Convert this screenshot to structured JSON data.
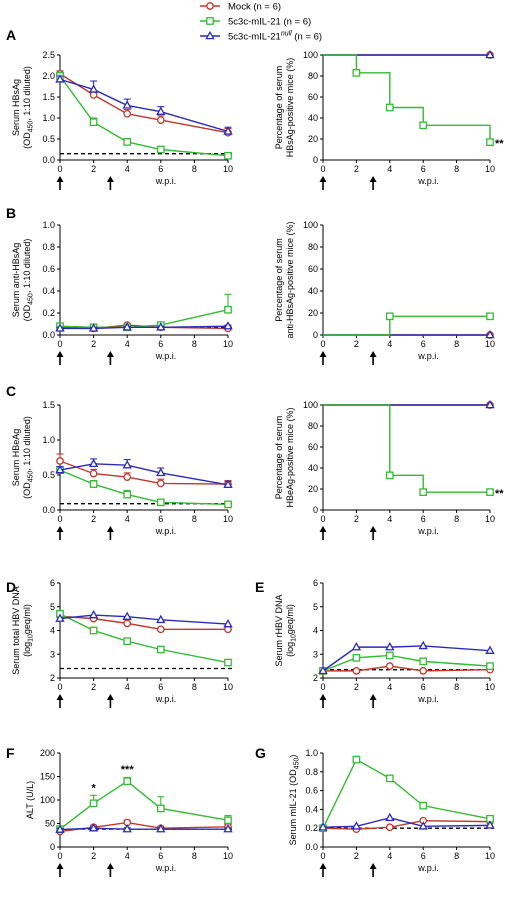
{
  "colors": {
    "mock": "#c0392b",
    "il21": "#33bb33",
    "null": "#2b2bb8",
    "axis": "#000000"
  },
  "legend": [
    {
      "key": "mock",
      "marker": "circle",
      "name": "Mock",
      "n": "(n = 6)"
    },
    {
      "key": "il21",
      "marker": "square",
      "name": "5c3c-mIL-21",
      "n": "(n = 6)"
    },
    {
      "key": "null",
      "marker": "triangle",
      "name": "5c3c-mIL-21",
      "sup": "null",
      "n": "(n = 6)"
    }
  ],
  "chart_data": [
    {
      "id": "A-left",
      "panel": "A",
      "type": "line",
      "ylabel": [
        "Serum HBsAg",
        "(OD450, 1:10 diluted)"
      ],
      "xlabel": "w.p.i.",
      "x": [
        0,
        2,
        4,
        6,
        10
      ],
      "xlim": [
        0,
        10
      ],
      "xticks": [
        0,
        2,
        4,
        6,
        8,
        10
      ],
      "ylim": [
        0,
        2.5
      ],
      "yticks": [
        "0.0",
        "0.5",
        "1.0",
        "1.5",
        "2.0",
        "2.5"
      ],
      "dashed_baseline": 0.15,
      "arrows_at": [
        0,
        3
      ],
      "series": [
        {
          "key": "mock",
          "values": [
            2.05,
            1.55,
            1.1,
            0.95,
            0.65
          ],
          "err": [
            0.07,
            0.08,
            0.1,
            0.1,
            0.1
          ]
        },
        {
          "key": "il21",
          "values": [
            2.0,
            0.9,
            0.43,
            0.25,
            0.1
          ],
          "err": [
            0.08,
            0.1,
            0.08,
            0.06,
            0.03
          ]
        },
        {
          "key": "null",
          "values": [
            1.92,
            1.68,
            1.3,
            1.15,
            0.68
          ],
          "err": [
            0.08,
            0.2,
            0.15,
            0.12,
            0.1
          ]
        }
      ],
      "annotations": []
    },
    {
      "id": "A-right",
      "panel": "A",
      "type": "step",
      "ylabel": [
        "Percentage of serum",
        "HBsAg-positive mice (%)"
      ],
      "xlabel": "w.p.i.",
      "x": [
        0,
        2,
        4,
        6,
        10
      ],
      "xlim": [
        0,
        10
      ],
      "xticks": [
        0,
        2,
        4,
        6,
        8,
        10
      ],
      "ylim": [
        0,
        100
      ],
      "yticks": [
        "0",
        "20",
        "40",
        "60",
        "80",
        "100"
      ],
      "arrows_at": [
        0,
        3
      ],
      "series": [
        {
          "key": "mock",
          "values": [
            100,
            100,
            100,
            100,
            100
          ]
        },
        {
          "key": "null",
          "values": [
            100,
            100,
            100,
            100,
            100
          ]
        },
        {
          "key": "il21",
          "values": [
            100,
            83,
            50,
            33,
            17
          ]
        }
      ],
      "annotations": [
        {
          "text": "**",
          "x": 10,
          "y": 17,
          "side": "right"
        }
      ]
    },
    {
      "id": "B-left",
      "panel": "B",
      "type": "line",
      "ylabel": [
        "Serum anti-HBsAg",
        "(OD450, 1:10 diluted)"
      ],
      "xlabel": "w.p.i.",
      "x": [
        0,
        2,
        4,
        6,
        10
      ],
      "xlim": [
        0,
        10
      ],
      "xticks": [
        0,
        2,
        4,
        6,
        8,
        10
      ],
      "ylim": [
        0,
        1.0
      ],
      "yticks": [
        "0.0",
        "0.2",
        "0.4",
        "0.6",
        "0.8",
        "1.0"
      ],
      "dashed_baseline": 0.07,
      "arrows_at": [
        0,
        3
      ],
      "series": [
        {
          "key": "mock",
          "values": [
            0.07,
            0.06,
            0.09,
            0.07,
            0.06
          ],
          "err": [
            0.01,
            0.01,
            0.01,
            0.01,
            0.01
          ]
        },
        {
          "key": "il21",
          "values": [
            0.08,
            0.07,
            0.07,
            0.09,
            0.23
          ],
          "err": [
            0.01,
            0.01,
            0.01,
            0.02,
            0.14
          ]
        },
        {
          "key": "null",
          "values": [
            0.06,
            0.06,
            0.07,
            0.07,
            0.08
          ],
          "err": [
            0.01,
            0.01,
            0.01,
            0.01,
            0.01
          ]
        }
      ],
      "annotations": []
    },
    {
      "id": "B-right",
      "panel": "B",
      "type": "step",
      "ylabel": [
        "Percentage of serum",
        "anti-HBsAg-positive mice (%)"
      ],
      "xlabel": "w.p.i.",
      "x": [
        0,
        2,
        4,
        6,
        10
      ],
      "xlim": [
        0,
        10
      ],
      "xticks": [
        0,
        2,
        4,
        6,
        8,
        10
      ],
      "ylim": [
        0,
        100
      ],
      "yticks": [
        "0",
        "20",
        "40",
        "60",
        "80",
        "100"
      ],
      "arrows_at": [
        0,
        3
      ],
      "series": [
        {
          "key": "mock",
          "values": [
            0,
            0,
            0,
            0,
            0
          ]
        },
        {
          "key": "null",
          "values": [
            0,
            0,
            0,
            0,
            0
          ]
        },
        {
          "key": "il21",
          "values": [
            0,
            0,
            17,
            17,
            17
          ]
        }
      ],
      "annotations": []
    },
    {
      "id": "C-left",
      "panel": "C",
      "type": "line",
      "ylabel": [
        "Serum HBeAg",
        "(OD450, 1:10 diluted)"
      ],
      "xlabel": "w.p.i.",
      "x": [
        0,
        2,
        4,
        6,
        10
      ],
      "xlim": [
        0,
        10
      ],
      "xticks": [
        0,
        2,
        4,
        6,
        8,
        10
      ],
      "ylim": [
        0,
        1.5
      ],
      "yticks": [
        "0.0",
        "0.5",
        "1.0",
        "1.5"
      ],
      "dashed_baseline": 0.09,
      "arrows_at": [
        0,
        3
      ],
      "series": [
        {
          "key": "mock",
          "values": [
            0.7,
            0.52,
            0.47,
            0.38,
            0.37
          ],
          "err": [
            0.1,
            0.06,
            0.06,
            0.06,
            0.05
          ]
        },
        {
          "key": "il21",
          "values": [
            0.57,
            0.37,
            0.22,
            0.11,
            0.08
          ],
          "err": [
            0.05,
            0.05,
            0.06,
            0.02,
            0.01
          ]
        },
        {
          "key": "null",
          "values": [
            0.57,
            0.66,
            0.64,
            0.53,
            0.36
          ],
          "err": [
            0.05,
            0.07,
            0.08,
            0.07,
            0.05
          ]
        }
      ],
      "annotations": []
    },
    {
      "id": "C-right",
      "panel": "C",
      "type": "step",
      "ylabel": [
        "Percentage of serum",
        "HBeAg-positive mice (%)"
      ],
      "xlabel": "w.p.i.",
      "x": [
        0,
        2,
        4,
        6,
        10
      ],
      "xlim": [
        0,
        10
      ],
      "xticks": [
        0,
        2,
        4,
        6,
        8,
        10
      ],
      "ylim": [
        0,
        100
      ],
      "yticks": [
        "0",
        "20",
        "40",
        "60",
        "80",
        "100"
      ],
      "arrows_at": [
        0,
        3
      ],
      "series": [
        {
          "key": "mock",
          "values": [
            100,
            100,
            100,
            100,
            100
          ]
        },
        {
          "key": "null",
          "values": [
            100,
            100,
            100,
            100,
            100
          ]
        },
        {
          "key": "il21",
          "values": [
            100,
            100,
            33,
            17,
            17
          ]
        }
      ],
      "annotations": [
        {
          "text": "**",
          "x": 10,
          "y": 17,
          "side": "right"
        }
      ]
    },
    {
      "id": "D",
      "panel": "D",
      "type": "line",
      "ylabel": [
        "Serum total HBV DNA",
        "(log10geq/ml)"
      ],
      "xlabel": "w.p.i.",
      "x": [
        0,
        2,
        4,
        6,
        10
      ],
      "xlim": [
        0,
        10
      ],
      "xticks": [
        0,
        2,
        4,
        6,
        8,
        10
      ],
      "ylim": [
        2,
        6
      ],
      "yticks": [
        "2",
        "3",
        "4",
        "5",
        "6"
      ],
      "dashed_baseline": 2.4,
      "arrows_at": [
        0,
        3
      ],
      "series": [
        {
          "key": "mock",
          "values": [
            4.6,
            4.5,
            4.3,
            4.05,
            4.05
          ]
        },
        {
          "key": "il21",
          "values": [
            4.7,
            4.0,
            3.55,
            3.2,
            2.65
          ]
        },
        {
          "key": "null",
          "values": [
            4.5,
            4.65,
            4.58,
            4.45,
            4.27
          ]
        }
      ],
      "annotations": []
    },
    {
      "id": "E",
      "panel": "E",
      "type": "line",
      "ylabel": [
        "Serum rHBV DNA",
        "(log10geq/ml)"
      ],
      "xlabel": "w.p.i.",
      "x": [
        0,
        2,
        4,
        6,
        10
      ],
      "xlim": [
        0,
        10
      ],
      "xticks": [
        0,
        2,
        4,
        6,
        8,
        10
      ],
      "ylim": [
        2,
        6
      ],
      "yticks": [
        "2",
        "3",
        "4",
        "5",
        "6"
      ],
      "dashed_baseline": 2.35,
      "arrows_at": [
        0,
        3
      ],
      "series": [
        {
          "key": "mock",
          "values": [
            2.3,
            2.3,
            2.5,
            2.3,
            2.35
          ]
        },
        {
          "key": "il21",
          "values": [
            2.3,
            2.85,
            2.95,
            2.7,
            2.5
          ]
        },
        {
          "key": "null",
          "values": [
            2.3,
            3.3,
            3.3,
            3.35,
            3.15
          ]
        }
      ],
      "annotations": []
    },
    {
      "id": "F",
      "panel": "F",
      "type": "line",
      "ylabel": [
        "ALT (U/L)"
      ],
      "xlabel": "w.p.i.",
      "x": [
        0,
        2,
        4,
        6,
        10
      ],
      "xlim": [
        0,
        10
      ],
      "xticks": [
        0,
        2,
        4,
        6,
        8,
        10
      ],
      "ylim": [
        0,
        200
      ],
      "yticks": [
        "0",
        "50",
        "100",
        "150",
        "200"
      ],
      "dashed_baseline": 38,
      "arrows_at": [
        0,
        3
      ],
      "series": [
        {
          "key": "mock",
          "values": [
            33,
            42,
            52,
            40,
            43
          ],
          "err": [
            3,
            4,
            5,
            4,
            5
          ]
        },
        {
          "key": "il21",
          "values": [
            38,
            93,
            140,
            82,
            57
          ],
          "err": [
            5,
            17,
            8,
            25,
            10
          ]
        },
        {
          "key": "null",
          "values": [
            37,
            40,
            38,
            38,
            38
          ],
          "err": [
            3,
            3,
            3,
            3,
            3
          ]
        }
      ],
      "annotations": [
        {
          "text": "*",
          "x": 2,
          "y": 118,
          "side": "center"
        },
        {
          "text": "***",
          "x": 4,
          "y": 157,
          "side": "center"
        }
      ]
    },
    {
      "id": "G",
      "panel": "G",
      "type": "line",
      "ylabel": [
        "Serum mIL-21 (OD450)"
      ],
      "xlabel": "w.p.i.",
      "x": [
        0,
        2,
        4,
        6,
        10
      ],
      "xlim": [
        0,
        10
      ],
      "xticks": [
        0,
        2,
        4,
        6,
        8,
        10
      ],
      "ylim": [
        0,
        1.0
      ],
      "yticks": [
        "0.0",
        "0.2",
        "0.4",
        "0.6",
        "0.8",
        "1.0"
      ],
      "dashed_baseline": 0.2,
      "arrows_at": [
        0,
        3
      ],
      "series": [
        {
          "key": "mock",
          "values": [
            0.2,
            0.19,
            0.21,
            0.28,
            0.27
          ]
        },
        {
          "key": "il21",
          "values": [
            0.2,
            0.93,
            0.73,
            0.44,
            0.3
          ]
        },
        {
          "key": "null",
          "values": [
            0.21,
            0.22,
            0.31,
            0.22,
            0.23
          ]
        }
      ],
      "annotations": []
    }
  ]
}
